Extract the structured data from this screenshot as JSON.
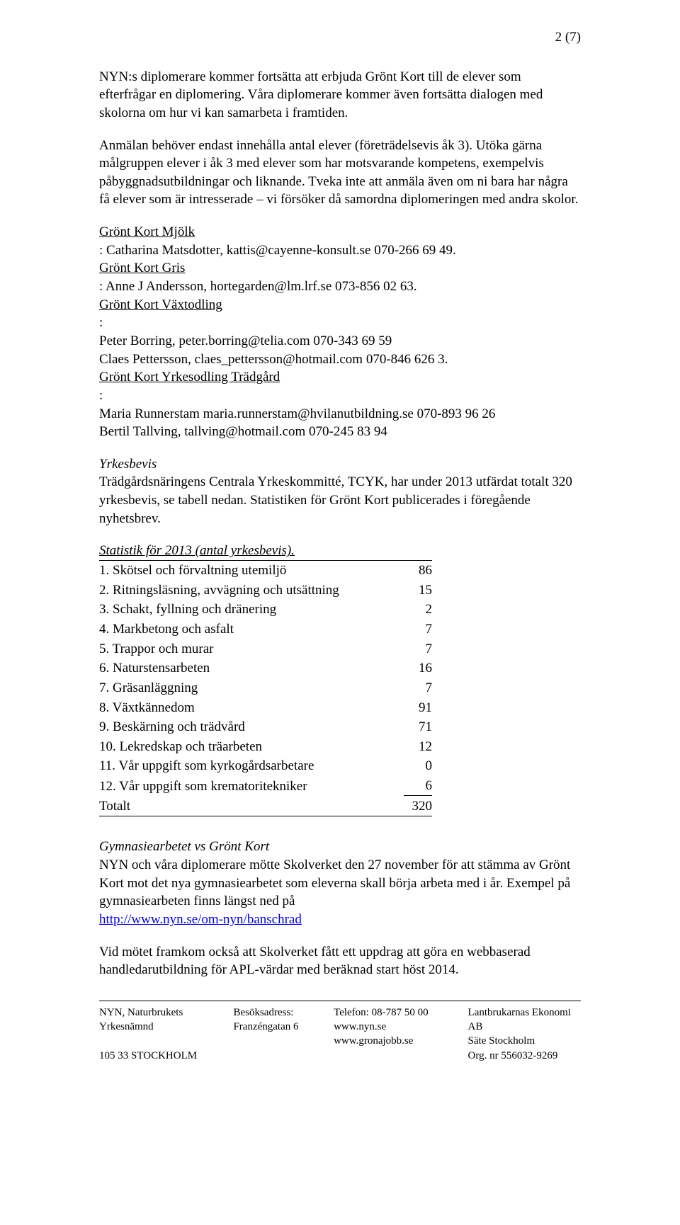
{
  "page_number": "2 (7)",
  "para1": "NYN:s diplomerare kommer fortsätta att erbjuda Grönt Kort till de elever som efterfrågar en diplomering. Våra diplomerare kommer även fortsätta dialogen med skolorna om hur vi kan samarbeta i framtiden.",
  "para2": "Anmälan behöver endast innehålla antal elever (företrädelsevis åk 3). Utöka gärna målgruppen elever i åk 3 med elever som har motsvarande kompetens, exempelvis påbyggnadsutbildningar och liknande. Tveka inte att anmäla även om ni bara har några få elever som är intresserade – vi försöker då samordna diplomeringen med andra skolor.",
  "contacts": {
    "mjolk_label": "Grönt Kort Mjölk",
    "mjolk_text": ": Catharina Matsdotter, kattis@cayenne-konsult.se 070-266 69 49.",
    "gris_label": "Grönt Kort Gris",
    "gris_text": ": Anne J Andersson, hortegarden@lm.lrf.se 073-856 02 63.",
    "vaxt_label": "Grönt Kort Växtodling",
    "vaxt_l1": "Peter Borring, peter.borring@telia.com 070-343 69 59",
    "vaxt_l2": "Claes Pettersson, claes_pettersson@hotmail.com 070-846 626 3.",
    "tradgard_label": "Grönt Kort Yrkesodling Trädgård",
    "tradgard_l1": "Maria Runnerstam maria.runnerstam@hvilanutbildning.se 070-893 96 26",
    "tradgard_l2": "Bertil Tallving, tallving@hotmail.com 070-245 83 94"
  },
  "yrkesbevis": {
    "heading": "Yrkesbevis",
    "text": "Trädgårdsnäringens Centrala Yrkeskommitté, TCYK, har under 2013 utfärdat totalt 320 yrkesbevis, se tabell nedan. Statistiken för Grönt Kort publicerades i föregående nyhetsbrev."
  },
  "table": {
    "title": "Statistik för 2013 (antal yrkesbevis).",
    "rows": [
      {
        "label": "1. Skötsel och förvaltning utemiljö",
        "value": "86"
      },
      {
        "label": "2. Ritningsläsning, avvägning och utsättning",
        "value": "15"
      },
      {
        "label": "3. Schakt, fyllning och dränering",
        "value": "2"
      },
      {
        "label": "4. Markbetong och asfalt",
        "value": "7"
      },
      {
        "label": "5. Trappor och murar",
        "value": "7"
      },
      {
        "label": "6. Naturstensarbeten",
        "value": "16"
      },
      {
        "label": "7. Gräsanläggning",
        "value": "7"
      },
      {
        "label": "8. Växtkännedom",
        "value": "91"
      },
      {
        "label": "9. Beskärning och trädvård",
        "value": "71"
      },
      {
        "label": "10. Lekredskap och träarbeten",
        "value": "12"
      },
      {
        "label": "11. Vår uppgift som kyrkogårdsarbetare",
        "value": "0"
      },
      {
        "label": "12. Vår uppgift som krematoritekniker",
        "value": "6"
      }
    ],
    "total_label": "Totalt",
    "total_value": "320"
  },
  "gymnasie": {
    "heading": "Gymnasiearbetet vs Grönt Kort",
    "text": "NYN och våra diplomerare mötte Skolverket den 27 november för att stämma av Grönt Kort mot det nya gymnasiearbetet som eleverna skall börja arbeta med i år. Exempel på gymnasiearbeten finns längst ned på",
    "link": "http://www.nyn.se/om-nyn/banschrad"
  },
  "para_last": "Vid mötet framkom också att Skolverket fått ett uppdrag att göra en webbaserad handledarutbildning för APL-värdar med beräknad start höst 2014.",
  "footer": {
    "col1_l1": "NYN, Naturbrukets Yrkesnämnd",
    "col1_l2": "105 33  STOCKHOLM",
    "col2_l1": "Besöksadress:",
    "col2_l2": "Franzéngatan 6",
    "col3_l1": "Telefon:  08-787 50 00",
    "col3_l2": "www.nyn.se",
    "col3_l3": "www.gronajobb.se",
    "col4_l1": "Lantbrukarnas Ekonomi AB",
    "col4_l2": "Säte Stockholm",
    "col4_l3": "Org. nr 556032-9269"
  }
}
